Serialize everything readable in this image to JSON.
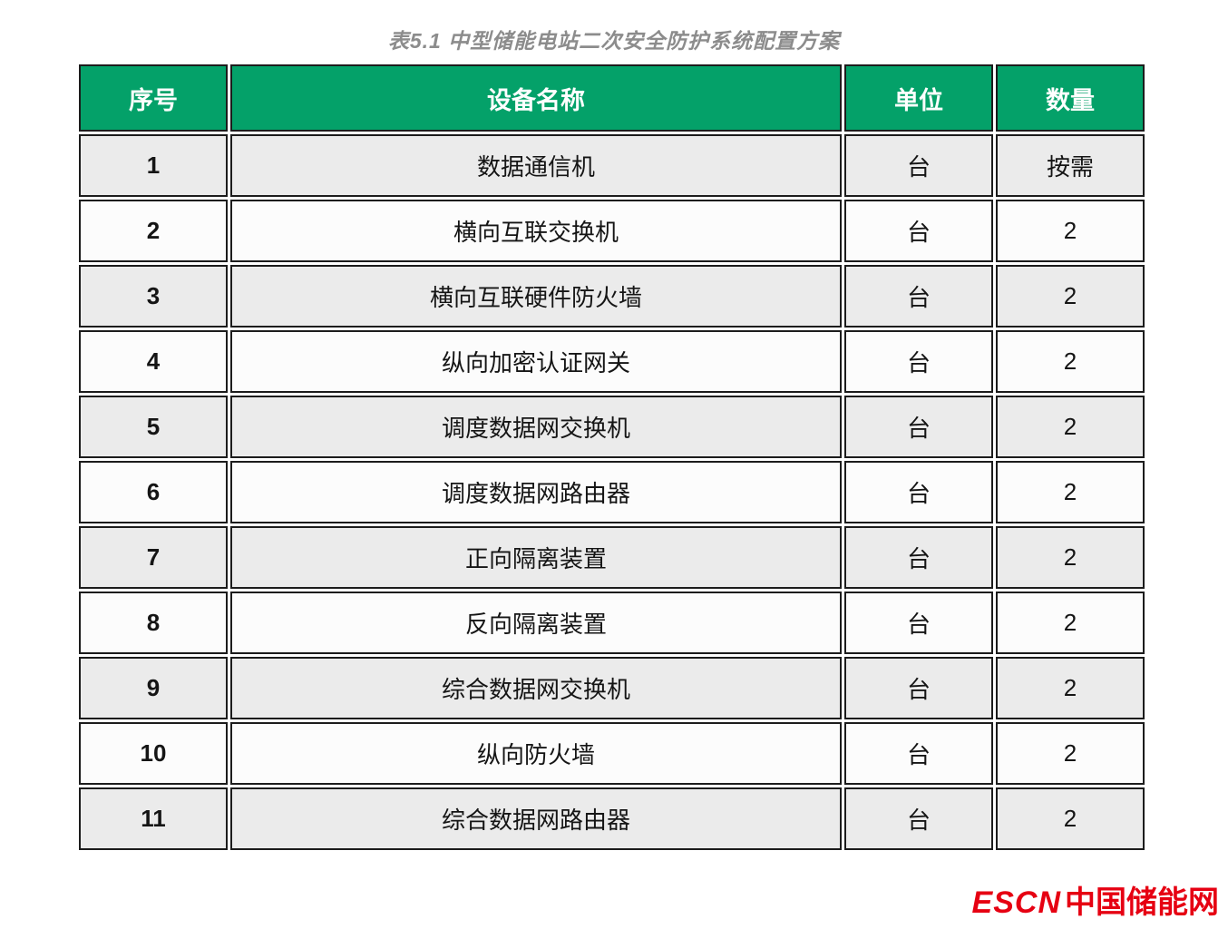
{
  "title": "表5.1 中型储能电站二次安全防护系统配置方案",
  "table": {
    "headers": [
      "序号",
      "设备名称",
      "单位",
      "数量"
    ],
    "rows": [
      {
        "no": "1",
        "name": "数据通信机",
        "unit": "台",
        "qty": "按需"
      },
      {
        "no": "2",
        "name": "横向互联交换机",
        "unit": "台",
        "qty": "2"
      },
      {
        "no": "3",
        "name": "横向互联硬件防火墙",
        "unit": "台",
        "qty": "2"
      },
      {
        "no": "4",
        "name": "纵向加密认证网关",
        "unit": "台",
        "qty": "2"
      },
      {
        "no": "5",
        "name": "调度数据网交换机",
        "unit": "台",
        "qty": "2"
      },
      {
        "no": "6",
        "name": "调度数据网路由器",
        "unit": "台",
        "qty": "2"
      },
      {
        "no": "7",
        "name": "正向隔离装置",
        "unit": "台",
        "qty": "2"
      },
      {
        "no": "8",
        "name": "反向隔离装置",
        "unit": "台",
        "qty": "2"
      },
      {
        "no": "9",
        "name": "综合数据网交换机",
        "unit": "台",
        "qty": "2"
      },
      {
        "no": "10",
        "name": "纵向防火墙",
        "unit": "台",
        "qty": "2"
      },
      {
        "no": "11",
        "name": "综合数据网路由器",
        "unit": "台",
        "qty": "2"
      }
    ]
  },
  "logo": {
    "escn": "ESCN",
    "site_name": "中国储能网"
  },
  "colors": {
    "header_bg": "#04a169",
    "header_text": "#ffffff",
    "row_odd_bg": "#ebebeb",
    "row_even_bg": "#fcfcfc",
    "border": "#1c1c1c",
    "title_text": "#8c8c8c",
    "logo_red": "#e60012"
  }
}
